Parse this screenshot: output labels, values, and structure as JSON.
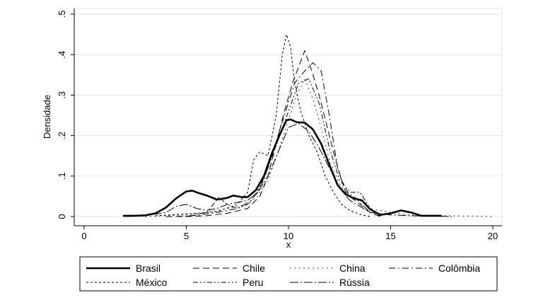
{
  "chart_data": {
    "type": "line",
    "xlabel": "x",
    "ylabel": "Densidade",
    "xlim": [
      0,
      20
    ],
    "ylim": [
      0,
      0.5
    ],
    "x_ticks": [
      0,
      5,
      10,
      15,
      20
    ],
    "x_tick_labels": [
      "0",
      "5",
      "10",
      "15",
      "20"
    ],
    "y_ticks": [
      0,
      0.1,
      0.2,
      0.3,
      0.4,
      0.5
    ],
    "y_tick_labels": [
      "0",
      ".1",
      ".2",
      ".3",
      ".4",
      ".5"
    ],
    "grid": true,
    "legend_position": "bottom",
    "series": [
      {
        "name": "Brasil",
        "dash": "solid",
        "width": 2.6,
        "x": [
          1.9,
          2.5,
          3.0,
          3.5,
          4.0,
          4.5,
          5.0,
          5.3,
          5.6,
          6.0,
          6.5,
          7.0,
          7.3,
          7.7,
          8.0,
          8.4,
          8.8,
          9.2,
          9.6,
          9.9,
          10.1,
          10.4,
          10.8,
          11.2,
          11.6,
          12.0,
          12.4,
          12.8,
          13.2,
          13.6,
          14.0,
          14.5,
          15.0,
          15.5,
          16.0,
          16.5,
          17.0,
          17.5
        ],
        "y": [
          0.002,
          0.002,
          0.003,
          0.008,
          0.022,
          0.045,
          0.062,
          0.064,
          0.058,
          0.052,
          0.042,
          0.046,
          0.052,
          0.048,
          0.048,
          0.065,
          0.1,
          0.158,
          0.205,
          0.238,
          0.24,
          0.233,
          0.232,
          0.215,
          0.18,
          0.128,
          0.078,
          0.055,
          0.045,
          0.04,
          0.018,
          0.004,
          0.008,
          0.015,
          0.01,
          0.002,
          0.002,
          0.002
        ]
      },
      {
        "name": "Chile",
        "dash": "9 5",
        "width": 1,
        "x": [
          4.0,
          5.0,
          6.0,
          7.0,
          8.0,
          8.6,
          9.0,
          9.4,
          9.8,
          10.2,
          10.5,
          10.8,
          11.0,
          11.2,
          11.5,
          11.8,
          12.2,
          12.6,
          13.0,
          13.5,
          14.0,
          14.5
        ],
        "y": [
          0.0,
          0.0,
          0.002,
          0.008,
          0.02,
          0.05,
          0.1,
          0.18,
          0.26,
          0.33,
          0.37,
          0.41,
          0.38,
          0.35,
          0.3,
          0.24,
          0.16,
          0.09,
          0.05,
          0.03,
          0.01,
          0.0
        ]
      },
      {
        "name": "China",
        "dash": "1.5 5",
        "width": 1,
        "x": [
          3.0,
          4.0,
          5.0,
          6.0,
          7.0,
          8.0,
          8.5,
          9.0,
          9.5,
          10.0,
          10.4,
          10.8,
          11.2,
          11.6,
          12.0,
          12.5,
          13.0,
          13.5,
          14.0,
          15.0,
          16.0,
          17.0,
          18.0,
          19.0,
          20.0
        ],
        "y": [
          0.0,
          0.002,
          0.004,
          0.01,
          0.02,
          0.03,
          0.05,
          0.09,
          0.16,
          0.24,
          0.3,
          0.34,
          0.29,
          0.22,
          0.14,
          0.08,
          0.05,
          0.04,
          0.02,
          0.01,
          0.004,
          0.003,
          0.002,
          0.001,
          0.0
        ]
      },
      {
        "name": "Colômbia",
        "dash": "9 4 2 4",
        "width": 1,
        "x": [
          4.5,
          5.5,
          6.5,
          7.5,
          8.2,
          8.8,
          9.3,
          9.8,
          10.3,
          10.8,
          11.2,
          11.6,
          12.0,
          12.4,
          12.8,
          13.2,
          13.6,
          14.0,
          14.5
        ],
        "y": [
          0.0,
          0.003,
          0.01,
          0.02,
          0.04,
          0.09,
          0.17,
          0.25,
          0.33,
          0.36,
          0.38,
          0.36,
          0.25,
          0.12,
          0.06,
          0.05,
          0.03,
          0.01,
          0.0
        ]
      },
      {
        "name": "México",
        "dash": "3 3",
        "width": 1,
        "x": [
          3.5,
          4.5,
          5.5,
          6.5,
          7.5,
          8.0,
          8.3,
          8.6,
          9.0,
          9.4,
          9.7,
          9.9,
          10.1,
          10.3,
          10.6,
          11.0,
          11.4,
          11.8,
          12.2,
          12.6,
          13.0,
          13.5,
          14.0
        ],
        "y": [
          0.002,
          0.005,
          0.008,
          0.012,
          0.03,
          0.06,
          0.14,
          0.16,
          0.15,
          0.25,
          0.4,
          0.45,
          0.42,
          0.33,
          0.26,
          0.2,
          0.16,
          0.1,
          0.06,
          0.03,
          0.015,
          0.005,
          0.0
        ]
      },
      {
        "name": "Peru",
        "dash": "7 3 2 3 2 3",
        "width": 1,
        "x": [
          5.0,
          6.0,
          6.6,
          7.0,
          7.5,
          8.0,
          8.5,
          9.0,
          9.5,
          10.0,
          10.5,
          11.0,
          11.5,
          12.0,
          12.5,
          13.0,
          13.5,
          14.0,
          14.5
        ],
        "y": [
          0.0,
          0.01,
          0.048,
          0.03,
          0.02,
          0.03,
          0.06,
          0.12,
          0.19,
          0.26,
          0.33,
          0.34,
          0.28,
          0.17,
          0.09,
          0.06,
          0.06,
          0.02,
          0.0
        ]
      },
      {
        "name": "Rússia",
        "dash": "12 3 2 3",
        "width": 1,
        "x": [
          2.0,
          3.0,
          4.0,
          4.5,
          5.0,
          5.5,
          6.0,
          6.5,
          7.0,
          7.5,
          8.0,
          8.5,
          9.0,
          9.5,
          10.0,
          10.5,
          11.0,
          11.5,
          12.0,
          12.5,
          13.0,
          13.5,
          14.0,
          15.0,
          16.0,
          17.0,
          18.0
        ],
        "y": [
          0.0,
          0.002,
          0.01,
          0.025,
          0.03,
          0.02,
          0.015,
          0.02,
          0.03,
          0.035,
          0.04,
          0.06,
          0.1,
          0.16,
          0.22,
          0.23,
          0.21,
          0.17,
          0.12,
          0.07,
          0.04,
          0.025,
          0.01,
          0.004,
          0.002,
          0.001,
          0.0
        ]
      }
    ]
  }
}
